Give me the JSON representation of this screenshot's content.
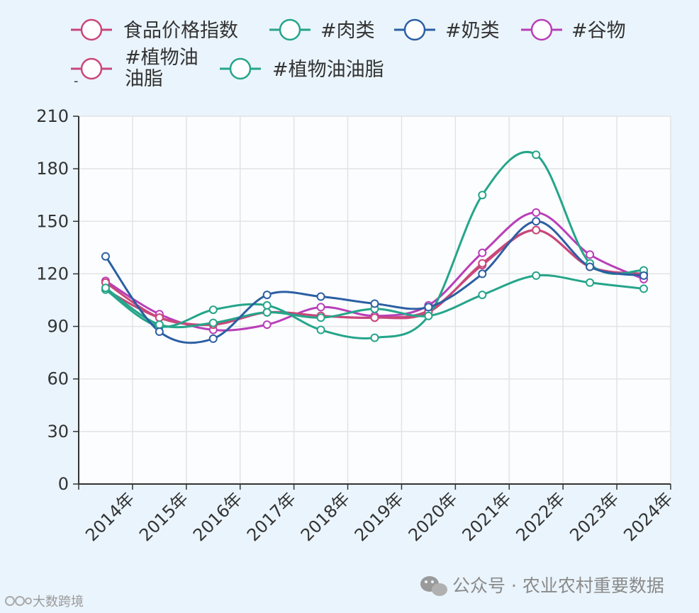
{
  "chart_data": {
    "type": "line",
    "title": "",
    "xlabel": "",
    "ylabel": "",
    "ylim": [
      0,
      210
    ],
    "yticks": [
      0,
      30,
      60,
      90,
      120,
      150,
      180,
      210
    ],
    "grid": true,
    "legend_position": "top",
    "categories": [
      "2014年",
      "2015年",
      "2016年",
      "2017年",
      "2018年",
      "2019年",
      "2020年",
      "2021年",
      "2022年",
      "2023年",
      "2024年"
    ],
    "series": [
      {
        "name": "食品价格指数",
        "color": "#c9477a",
        "values": [
          115,
          95,
          91,
          98,
          96,
          95,
          98,
          126,
          145,
          124,
          120
        ]
      },
      {
        "name": "#肉类",
        "color": "#25a58a",
        "values": [
          112,
          91,
          92,
          98,
          95,
          100,
          96,
          108,
          119,
          115,
          111.5
        ]
      },
      {
        "name": "#奶类",
        "color": "#2c5fa3",
        "values": [
          130,
          87,
          83,
          108,
          107,
          103,
          101,
          120,
          150,
          124,
          119
        ]
      },
      {
        "name": "#谷物",
        "color": "#b93eb8",
        "values": [
          116,
          97,
          88,
          91,
          101,
          96,
          102,
          132,
          155,
          131,
          117
        ]
      },
      {
        "name": "-\n#植物油\n油脂",
        "color": "#c9477a",
        "values": [
          111,
          95,
          91,
          98,
          96,
          95,
          99,
          125,
          145,
          124,
          120
        ]
      },
      {
        "name": "#植物油油脂",
        "color": "#25a58a",
        "values": [
          111,
          90,
          99.5,
          102,
          88,
          83.5,
          96,
          165,
          188,
          126,
          122
        ]
      }
    ]
  },
  "legend": {
    "items": [
      {
        "label": "食品价格指数",
        "color": "#c9477a"
      },
      {
        "label": "#肉类",
        "color": "#25a58a"
      },
      {
        "label": "#奶类",
        "color": "#2c5fa3"
      },
      {
        "label": "#谷物",
        "color": "#b93eb8"
      },
      {
        "label_prefix": "-",
        "label_line1": "#植物油",
        "label_line2": "油脂",
        "color": "#c9477a"
      },
      {
        "label": "#植物油油脂",
        "color": "#25a58a"
      }
    ]
  },
  "watermark": {
    "text": "公众号 · 农业农村重要数据",
    "icon": "wechat-icon",
    "corner_text": "大数跨境"
  }
}
